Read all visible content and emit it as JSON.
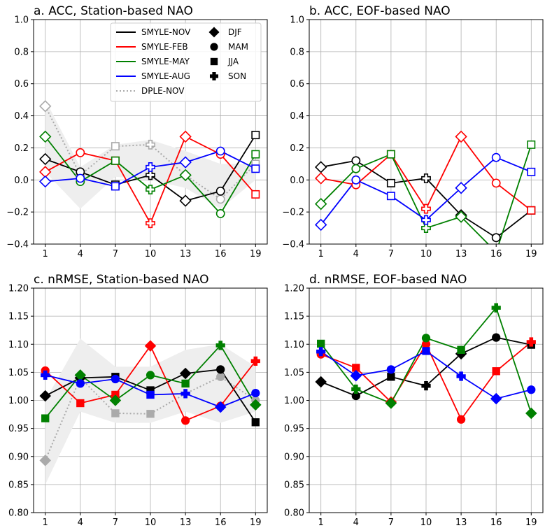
{
  "figure": {
    "legend": {
      "lines": [
        {
          "label": "SMYLE-NOV",
          "color": "#000000",
          "dash": false
        },
        {
          "label": "SMYLE-FEB",
          "color": "#ff0000",
          "dash": false
        },
        {
          "label": "SMYLE-MAY",
          "color": "#008000",
          "dash": false
        },
        {
          "label": "SMYLE-AUG",
          "color": "#0000ff",
          "dash": false
        },
        {
          "label": "DPLE-NOV",
          "color": "#aaaaaa",
          "dash": true
        }
      ],
      "markers": [
        {
          "label": "DJF",
          "shape": "diamond"
        },
        {
          "label": "MAM",
          "shape": "circle"
        },
        {
          "label": "JJA",
          "shape": "square"
        },
        {
          "label": "SON",
          "shape": "plus"
        }
      ]
    }
  },
  "chart_data": [
    {
      "type": "line",
      "title": "a. ACC, Station-based NAO",
      "x": [
        1,
        4,
        7,
        10,
        13,
        16,
        19
      ],
      "xticks": [
        "1",
        "4",
        "7",
        "10",
        "13",
        "16",
        "19"
      ],
      "ylim": [
        -0.4,
        1.0
      ],
      "yticks": [
        "−0.4",
        "−0.2",
        "0.0",
        "0.2",
        "0.4",
        "0.6",
        "0.8",
        "1.0"
      ],
      "ytick_values": [
        -0.4,
        -0.2,
        0.0,
        0.2,
        0.4,
        0.6,
        0.8,
        1.0
      ],
      "grid": true,
      "legend": "top",
      "marker_style": "open",
      "markers": [
        "diamond",
        "circle",
        "square",
        "plus",
        "diamond",
        "circle",
        "square"
      ],
      "spread": {
        "lower": [
          0.05,
          -0.18,
          0.02,
          0.0,
          -0.05,
          -0.18,
          0.0
        ],
        "upper": [
          0.5,
          0.08,
          0.22,
          0.25,
          0.18,
          0.1,
          0.1
        ]
      },
      "series": [
        {
          "name": "DPLE-NOV",
          "color": "#aaaaaa",
          "dash": true,
          "values": [
            0.46,
            0.03,
            0.21,
            0.22,
            0.03,
            -0.12,
            0.1
          ]
        },
        {
          "name": "SMYLE-NOV",
          "color": "#000000",
          "dash": false,
          "values": [
            0.13,
            0.05,
            -0.03,
            0.03,
            -0.13,
            -0.07,
            0.28
          ]
        },
        {
          "name": "SMYLE-FEB",
          "color": "#ff0000",
          "dash": false,
          "values": [
            0.05,
            0.17,
            0.12,
            -0.27,
            0.27,
            0.16,
            -0.09
          ]
        },
        {
          "name": "SMYLE-MAY",
          "color": "#008000",
          "dash": false,
          "values": [
            0.27,
            -0.01,
            0.12,
            -0.06,
            0.03,
            -0.21,
            0.16
          ]
        },
        {
          "name": "SMYLE-AUG",
          "color": "#0000ff",
          "dash": false,
          "values": [
            -0.01,
            0.01,
            -0.04,
            0.08,
            0.11,
            0.18,
            0.07
          ]
        }
      ]
    },
    {
      "type": "line",
      "title": "b. ACC, EOF-based NAO",
      "x": [
        1,
        4,
        7,
        10,
        13,
        16,
        19
      ],
      "xticks": [
        "1",
        "4",
        "7",
        "10",
        "13",
        "16",
        "19"
      ],
      "ylim": [
        -0.4,
        1.0
      ],
      "yticks": [
        "−0.4",
        "−0.2",
        "0.0",
        "0.2",
        "0.4",
        "0.6",
        "0.8",
        "1.0"
      ],
      "ytick_values": [
        -0.4,
        -0.2,
        0.0,
        0.2,
        0.4,
        0.6,
        0.8,
        1.0
      ],
      "grid": true,
      "marker_style": "open",
      "markers": [
        "diamond",
        "circle",
        "square",
        "plus",
        "diamond",
        "circle",
        "square"
      ],
      "series": [
        {
          "name": "SMYLE-NOV",
          "color": "#000000",
          "dash": false,
          "values": [
            0.08,
            0.12,
            -0.02,
            0.01,
            -0.22,
            -0.36,
            -0.19
          ]
        },
        {
          "name": "SMYLE-FEB",
          "color": "#ff0000",
          "dash": false,
          "values": [
            0.01,
            -0.03,
            0.16,
            -0.18,
            0.27,
            -0.02,
            -0.19
          ]
        },
        {
          "name": "SMYLE-MAY",
          "color": "#008000",
          "dash": false,
          "values": [
            -0.15,
            0.07,
            0.16,
            -0.3,
            -0.23,
            -0.45,
            0.22
          ]
        },
        {
          "name": "SMYLE-AUG",
          "color": "#0000ff",
          "dash": false,
          "values": [
            -0.28,
            0.0,
            -0.1,
            -0.25,
            -0.05,
            0.14,
            0.05
          ]
        }
      ]
    },
    {
      "type": "line",
      "title": "c. nRMSE, Station-based NAO",
      "x": [
        1,
        4,
        7,
        10,
        13,
        16,
        19
      ],
      "xticks": [
        "1",
        "4",
        "7",
        "10",
        "13",
        "16",
        "19"
      ],
      "ylim": [
        0.8,
        1.2
      ],
      "yticks": [
        "0.80",
        "0.85",
        "0.90",
        "0.95",
        "1.00",
        "1.05",
        "1.10",
        "1.15",
        "1.20"
      ],
      "ytick_values": [
        0.8,
        0.85,
        0.9,
        0.95,
        1.0,
        1.05,
        1.1,
        1.15,
        1.2
      ],
      "grid": true,
      "marker_style": "filled",
      "markers": [
        "diamond",
        "square",
        "circle",
        "diamond",
        "circle",
        "diamond",
        "square"
      ],
      "series_markers": {
        "SMYLE-FEB": [
          "circle",
          "square",
          "square",
          "diamond",
          "circle",
          "circle",
          "plus"
        ],
        "SMYLE-NOV": [
          "diamond",
          "diamond",
          "square",
          "square",
          "diamond",
          "circle",
          "square"
        ],
        "SMYLE-MAY": [
          "square",
          "diamond",
          "diamond",
          "circle",
          "square",
          "plus",
          "diamond"
        ],
        "SMYLE-AUG": [
          "plus",
          "circle",
          "circle",
          "square",
          "plus",
          "diamond",
          "circle"
        ],
        "DPLE-NOV": [
          "diamond",
          "circle",
          "square",
          "square",
          "plus",
          "circle",
          "circle"
        ]
      },
      "spread": {
        "lower": [
          0.85,
          0.98,
          0.96,
          0.96,
          0.98,
          0.96,
          0.98
        ],
        "upper": [
          1.0,
          1.11,
          1.06,
          1.06,
          1.09,
          1.1,
          1.06
        ]
      },
      "series": [
        {
          "name": "DPLE-NOV",
          "color": "#aaaaaa",
          "dash": true,
          "values": [
            0.893,
            1.04,
            0.977,
            0.976,
            1.012,
            1.042,
            1.0
          ]
        },
        {
          "name": "SMYLE-NOV",
          "color": "#000000",
          "dash": false,
          "values": [
            1.008,
            1.04,
            1.042,
            1.018,
            1.048,
            1.055,
            0.961
          ]
        },
        {
          "name": "SMYLE-FEB",
          "color": "#ff0000",
          "dash": false,
          "values": [
            1.053,
            0.995,
            1.01,
            1.097,
            0.964,
            0.99,
            1.07
          ]
        },
        {
          "name": "SMYLE-MAY",
          "color": "#008000",
          "dash": false,
          "values": [
            0.968,
            1.045,
            1.0,
            1.045,
            1.03,
            1.098,
            0.992
          ]
        },
        {
          "name": "SMYLE-AUG",
          "color": "#0000ff",
          "dash": false,
          "values": [
            1.045,
            1.03,
            1.038,
            1.01,
            1.012,
            0.988,
            1.013
          ]
        }
      ]
    },
    {
      "type": "line",
      "title": "d. nRMSE, EOF-based NAO",
      "x": [
        1,
        4,
        7,
        10,
        13,
        16,
        19
      ],
      "xticks": [
        "1",
        "4",
        "7",
        "10",
        "13",
        "16",
        "19"
      ],
      "ylim": [
        0.8,
        1.2
      ],
      "yticks": [
        "0.80",
        "0.85",
        "0.90",
        "0.95",
        "1.00",
        "1.05",
        "1.10",
        "1.15",
        "1.20"
      ],
      "ytick_values": [
        0.8,
        0.85,
        0.9,
        0.95,
        1.0,
        1.05,
        1.1,
        1.15,
        1.2
      ],
      "grid": true,
      "marker_style": "filled",
      "series_markers": {
        "SMYLE-NOV": [
          "diamond",
          "circle",
          "square",
          "plus",
          "diamond",
          "circle",
          "square"
        ],
        "SMYLE-FEB": [
          "circle",
          "square",
          "diamond",
          "circle",
          "circle",
          "square",
          "plus"
        ],
        "SMYLE-MAY": [
          "square",
          "plus",
          "diamond",
          "circle",
          "square",
          "plus",
          "diamond"
        ],
        "SMYLE-AUG": [
          "plus",
          "diamond",
          "circle",
          "square",
          "plus",
          "diamond",
          "circle"
        ]
      },
      "series": [
        {
          "name": "SMYLE-NOV",
          "color": "#000000",
          "dash": false,
          "values": [
            1.033,
            1.008,
            1.042,
            1.026,
            1.083,
            1.112,
            1.099
          ]
        },
        {
          "name": "SMYLE-FEB",
          "color": "#ff0000",
          "dash": false,
          "values": [
            1.082,
            1.058,
            0.997,
            1.1,
            0.966,
            1.052,
            1.104
          ]
        },
        {
          "name": "SMYLE-MAY",
          "color": "#008000",
          "dash": false,
          "values": [
            1.101,
            1.02,
            0.995,
            1.111,
            1.09,
            1.165,
            0.977
          ]
        },
        {
          "name": "SMYLE-AUG",
          "color": "#0000ff",
          "dash": false,
          "values": [
            1.087,
            1.044,
            1.055,
            1.088,
            1.043,
            1.003,
            1.019
          ]
        }
      ]
    }
  ]
}
